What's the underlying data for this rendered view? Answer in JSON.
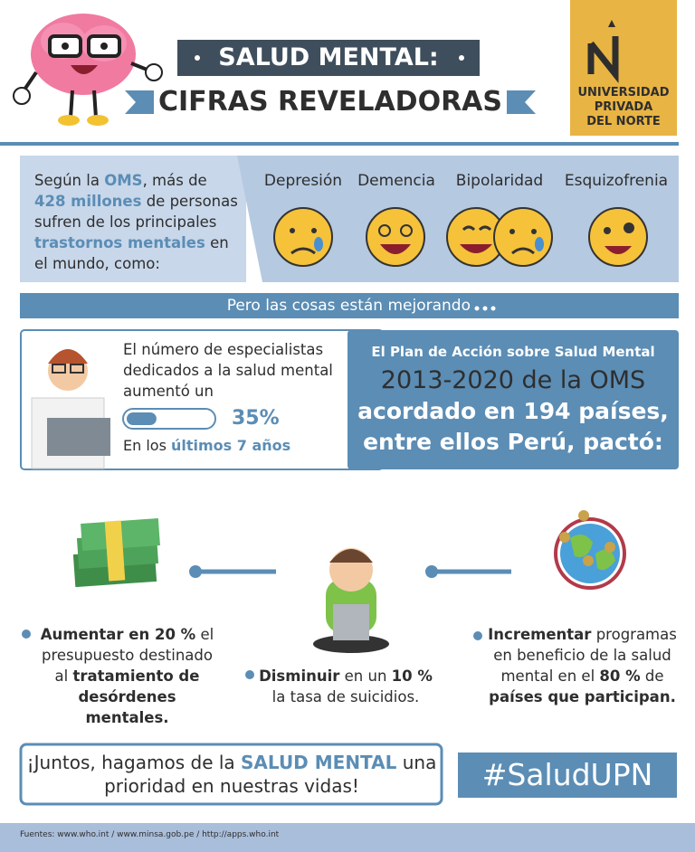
{
  "header": {
    "title_top": "SALUD MENTAL:",
    "title_bottom": "CIFRAS REVELADORAS",
    "logo": [
      "UNIVERSIDAD",
      "PRIVADA",
      "DEL NORTE"
    ]
  },
  "intro": {
    "text": [
      "Según la",
      "OMS",
      ", más de",
      "428 millones",
      "de personas sufren de los principales",
      "trastornos mentales",
      "en el mundo, como:"
    ],
    "disorders": [
      "Depresión",
      "Demencia",
      "Bipolaridad",
      "Esquizofrenia"
    ]
  },
  "banner": "Pero las cosas están mejorando",
  "specialists": {
    "text": "El número de especialistas dedicados a la salud mental aumentó un",
    "percent": {
      "value": 35,
      "label": "35%"
    },
    "period": [
      "En los",
      "últimos 7 años"
    ]
  },
  "plan": {
    "lead": "El Plan de Acción sobre Salud Mental",
    "lines": [
      "2013-2020 de la OMS",
      "acordado en 194 países,",
      "entre ellos Perú, pactó:"
    ]
  },
  "goals": [
    [
      "Aumentar en 20 %",
      "el presupuesto destinado",
      "al",
      "tratamiento de desórdenes mentales."
    ],
    [
      "Disminuir",
      "en un",
      "10 %",
      "la tasa de suicidios."
    ],
    [
      "Incrementar",
      "programas en beneficio de la salud mental en el",
      "80 %",
      "de",
      "países que participan."
    ]
  ],
  "closing": [
    "¡Juntos, hagamos de la",
    "SALUD MENTAL",
    "una prioridad en nuestras vidas!"
  ],
  "hashtag": "#SaludUPN",
  "footer": "Fuentes: www.who.int / www.minsa.gob.pe / http://apps.who.int"
}
